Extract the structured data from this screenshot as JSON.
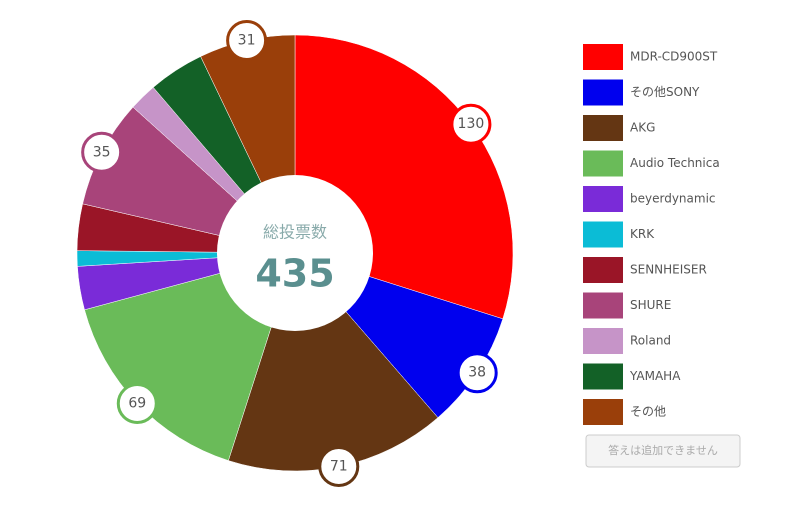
{
  "chart_data": {
    "type": "pie",
    "categories": [
      "MDR-CD900ST",
      "その他SONY",
      "AKG",
      "Audio Technica",
      "beyerdynamic",
      "KRK",
      "SENNHEISER",
      "SHURE",
      "Roland",
      "YAMAHA",
      "その他"
    ],
    "values": [
      130,
      38,
      71,
      69,
      14,
      5,
      15,
      35,
      9,
      18,
      31
    ],
    "value_labels": [
      "130",
      "38",
      "71",
      "69",
      null,
      null,
      null,
      "35",
      null,
      null,
      "31"
    ],
    "colors": [
      "#ff0000",
      "#0000ee",
      "#643613",
      "#6abb59",
      "#7a2bd8",
      "#0bbcd6",
      "#9a1527",
      "#a8447a",
      "#c694c8",
      "#136127",
      "#9a3f0a"
    ],
    "center_label": "総投票数",
    "total": 435
  },
  "button": {
    "label": "答えは追加できません",
    "disabled": true
  }
}
